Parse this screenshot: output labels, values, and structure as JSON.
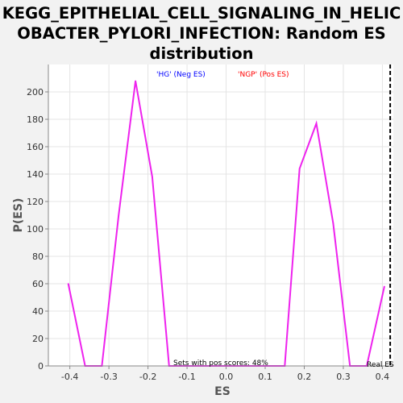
{
  "chart_data": {
    "type": "line",
    "title_lines": [
      "KEGG_EPITHELIAL_CELL_SIGNALING_IN_HELIC",
      "OBACTER_PYLORI_INFECTION: Random ES",
      "distribution"
    ],
    "xlabel": "ES",
    "ylabel": "P(ES)",
    "xlim": [
      -0.455,
      0.428
    ],
    "ylim": [
      0,
      220
    ],
    "xticks": [
      -0.4,
      -0.3,
      -0.2,
      -0.1,
      0.0,
      0.1,
      0.2,
      0.3,
      0.4
    ],
    "xtick_labels": [
      "-0.4",
      "-0.3",
      "-0.2",
      "-0.1",
      "0.0",
      "0.1",
      "0.2",
      "0.3",
      "0.4"
    ],
    "yticks": [
      0,
      20,
      40,
      60,
      80,
      100,
      120,
      140,
      160,
      180,
      200
    ],
    "grid": true,
    "series": [
      {
        "color": "#ee22ee",
        "x": [
          -0.404,
          -0.361,
          -0.318,
          -0.275,
          -0.232,
          -0.189,
          -0.146,
          -0.103,
          -0.06,
          -0.017,
          0.026,
          0.069,
          0.112,
          0.15,
          0.188,
          0.231,
          0.274,
          0.317,
          0.36,
          0.405
        ],
        "y": [
          60,
          0,
          0,
          110,
          208,
          138,
          0,
          0,
          0,
          0,
          0,
          0,
          0,
          0,
          144,
          177,
          104,
          0,
          0,
          58
        ]
      }
    ],
    "real_es_x": 0.42,
    "annotations": {
      "neg_label": "'HG' (Neg ES)",
      "pos_label": "'NGP' (Pos ES)",
      "pos_scores": "Sets with pos scores: 48%",
      "real_es": "Real ES"
    },
    "annotation_colors": {
      "neg": "#0000ff",
      "pos": "#ff0000",
      "pos_scores": "#000000",
      "real_es": "#000000"
    }
  }
}
